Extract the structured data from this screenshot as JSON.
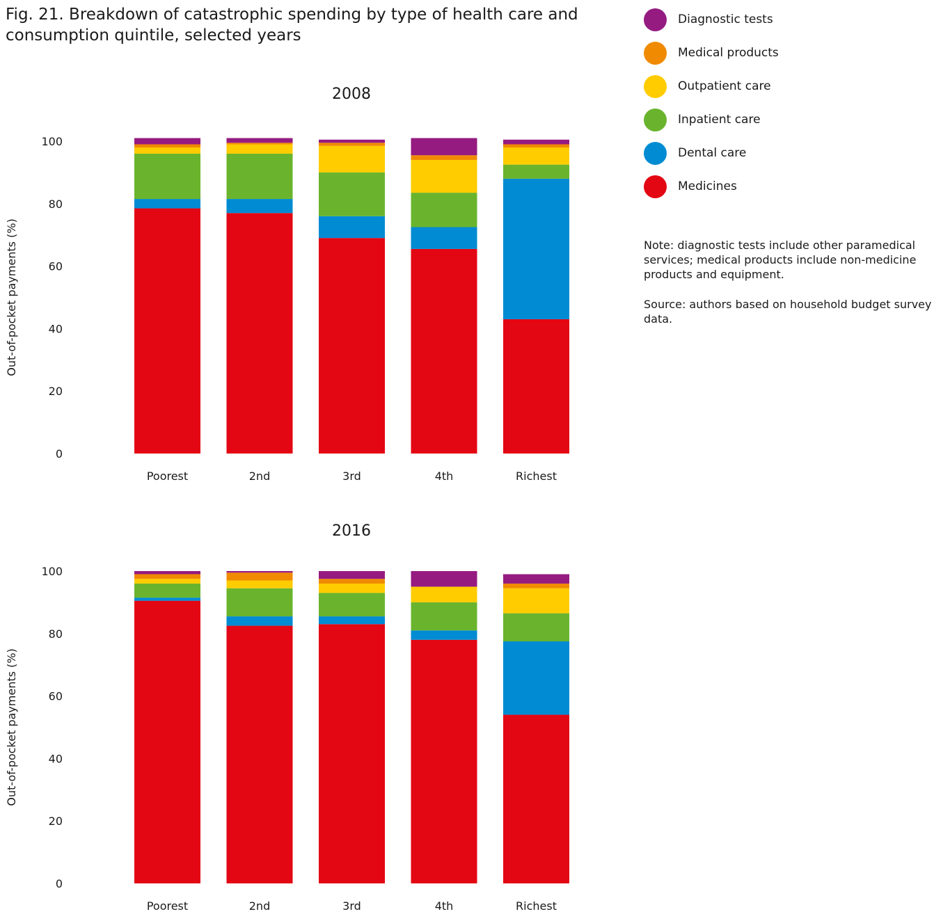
{
  "figure": {
    "title_line1": "Fig. 21. Breakdown of catastrophic spending by type of health care and",
    "title_line2": "consumption quintile, selected years",
    "note": "Note: diagnostic tests include other paramedical services; medical products include non-medicine products and equipment.",
    "source": "Source: authors based on household budget survey data."
  },
  "legend": [
    {
      "label": "Diagnostic tests",
      "color": "#951B81"
    },
    {
      "label": "Medical products",
      "color": "#F08A00"
    },
    {
      "label": "Outpatient care",
      "color": "#FFCC00"
    },
    {
      "label": "Inpatient care",
      "color": "#6AB42D"
    },
    {
      "label": "Dental care",
      "color": "#008BD2"
    },
    {
      "label": "Medicines",
      "color": "#E30613"
    }
  ],
  "chart_data": [
    {
      "type": "bar",
      "stacked": true,
      "title": "2008",
      "ylabel": "Out-of-pocket payments (%)",
      "ylim": [
        0,
        100
      ],
      "yticks": [
        0,
        20,
        40,
        60,
        80,
        100
      ],
      "categories": [
        "Poorest",
        "2nd",
        "3rd",
        "4th",
        "Richest"
      ],
      "series": [
        {
          "name": "Medicines",
          "color": "#E30613",
          "values": [
            78.5,
            77,
            69,
            65.5,
            43
          ]
        },
        {
          "name": "Dental care",
          "color": "#008BD2",
          "values": [
            3,
            4.5,
            7,
            7,
            45
          ]
        },
        {
          "name": "Inpatient care",
          "color": "#6AB42D",
          "values": [
            14.5,
            14.5,
            14,
            11,
            4.5
          ]
        },
        {
          "name": "Outpatient care",
          "color": "#FFCC00",
          "values": [
            2,
            3,
            8.5,
            10.5,
            5.5
          ]
        },
        {
          "name": "Medical products",
          "color": "#F08A00",
          "values": [
            1,
            0.5,
            1,
            1.5,
            1
          ]
        },
        {
          "name": "Diagnostic tests",
          "color": "#951B81",
          "values": [
            2,
            1.5,
            1,
            5.5,
            1.5
          ]
        }
      ]
    },
    {
      "type": "bar",
      "stacked": true,
      "title": "2016",
      "ylabel": "Out-of-pocket payments (%)",
      "ylim": [
        0,
        100
      ],
      "yticks": [
        0,
        20,
        40,
        60,
        80,
        100
      ],
      "categories": [
        "Poorest",
        "2nd",
        "3rd",
        "4th",
        "Richest"
      ],
      "series": [
        {
          "name": "Medicines",
          "color": "#E30613",
          "values": [
            90.5,
            82.5,
            83,
            78,
            54
          ]
        },
        {
          "name": "Dental care",
          "color": "#008BD2",
          "values": [
            1,
            3,
            2.5,
            3,
            23.5
          ]
        },
        {
          "name": "Inpatient care",
          "color": "#6AB42D",
          "values": [
            4.5,
            9,
            7.5,
            9,
            9
          ]
        },
        {
          "name": "Outpatient care",
          "color": "#FFCC00",
          "values": [
            1.5,
            2.5,
            3,
            5,
            8
          ]
        },
        {
          "name": "Medical products",
          "color": "#F08A00",
          "values": [
            1.5,
            2.5,
            1.5,
            0,
            1.5
          ]
        },
        {
          "name": "Diagnostic tests",
          "color": "#951B81",
          "values": [
            1,
            0.5,
            2.5,
            5,
            3
          ]
        }
      ]
    }
  ]
}
